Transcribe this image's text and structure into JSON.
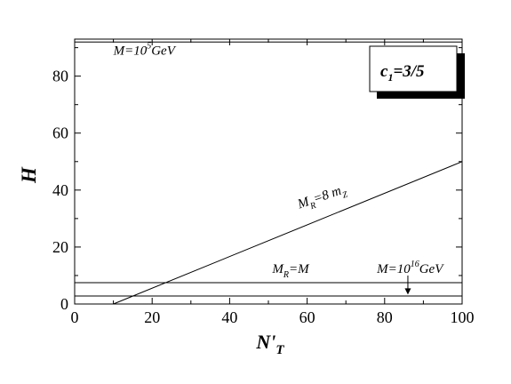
{
  "chart_data": {
    "type": "line",
    "xlabel": "N'_T",
    "ylabel": "H",
    "xlim": [
      0,
      100
    ],
    "ylim": [
      0,
      93
    ],
    "x_ticks": [
      "0",
      "20",
      "40",
      "60",
      "80",
      "100"
    ],
    "y_ticks": [
      "0",
      "20",
      "40",
      "60",
      "80"
    ],
    "x_tick_values": [
      0,
      20,
      40,
      60,
      80,
      100
    ],
    "y_tick_values": [
      0,
      20,
      40,
      60,
      80
    ],
    "grid": false,
    "legend_box": {
      "text": "c_1=3/5",
      "placement": "top-right"
    },
    "series": [
      {
        "name": "M=10^5 GeV",
        "x": [
          0,
          100
        ],
        "y": [
          92,
          92
        ]
      },
      {
        "name": "M_R=8 m_Z",
        "x": [
          10,
          100
        ],
        "y": [
          0,
          50
        ]
      },
      {
        "name": "M_R=M",
        "x": [
          0,
          100
        ],
        "y": [
          7.5,
          7.5
        ]
      },
      {
        "name": "M=10^16 GeV",
        "x": [
          0,
          100
        ],
        "y": [
          2.8,
          2.8
        ]
      }
    ],
    "annotations": [
      {
        "text": "M=10^5 GeV",
        "x": 10,
        "y": 87.5
      },
      {
        "text": "M_R=8 m_Z",
        "x": 58,
        "y": 33.5
      },
      {
        "text": "M_R=M",
        "x": 51,
        "y": 11
      },
      {
        "text": "M=10^16 GeV",
        "x": 78,
        "y": 11
      }
    ],
    "arrow": {
      "x": 86,
      "from_y": 10,
      "to_y": 3.3
    }
  }
}
